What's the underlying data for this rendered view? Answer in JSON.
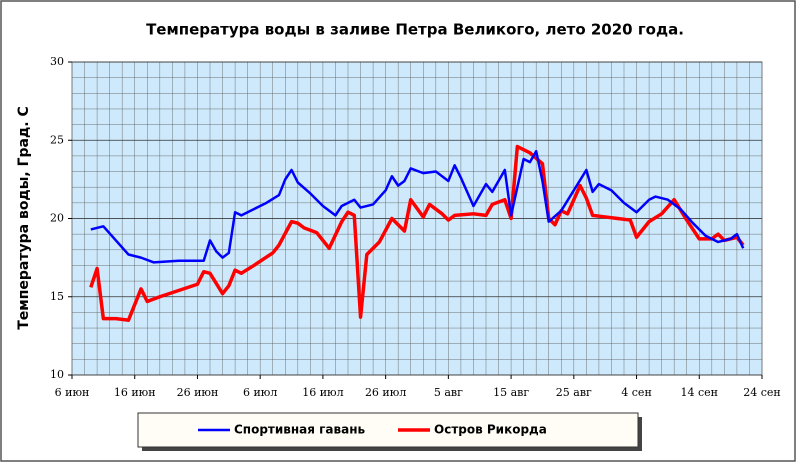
{
  "chart_data": {
    "type": "line",
    "title": "Температура воды в заливе Петра Великого,  лето 2020 года.",
    "y_label": "Температура воды, Град. С",
    "xlim": [
      "2020-06-06",
      "2020-09-24"
    ],
    "xticks": [
      {
        "value": "2020-06-06",
        "label": "6 июн"
      },
      {
        "value": "2020-06-16",
        "label": "16 июн"
      },
      {
        "value": "2020-06-26",
        "label": "26 июн"
      },
      {
        "value": "2020-07-06",
        "label": "6 июл"
      },
      {
        "value": "2020-07-16",
        "label": "16 июл"
      },
      {
        "value": "2020-07-26",
        "label": "26 июл"
      },
      {
        "value": "2020-08-05",
        "label": "5 авг"
      },
      {
        "value": "2020-08-15",
        "label": "15 авг"
      },
      {
        "value": "2020-08-25",
        "label": "25 авг"
      },
      {
        "value": "2020-09-04",
        "label": "4 сен"
      },
      {
        "value": "2020-09-14",
        "label": "14 сен"
      },
      {
        "value": "2020-09-24",
        "label": "24 сен"
      }
    ],
    "ylim": [
      10,
      30
    ],
    "yticks": [
      10,
      15,
      20,
      25,
      30
    ],
    "grid": true,
    "series": [
      {
        "name": "Спортивная гавань",
        "color": "#0000ff",
        "x": [
          "2020-06-09",
          "2020-06-11",
          "2020-06-13",
          "2020-06-15",
          "2020-06-17",
          "2020-06-19",
          "2020-06-23",
          "2020-06-27",
          "2020-06-28",
          "2020-06-29",
          "2020-06-30",
          "2020-07-01",
          "2020-07-02",
          "2020-07-03",
          "2020-07-05",
          "2020-07-07",
          "2020-07-09",
          "2020-07-10",
          "2020-07-11",
          "2020-07-12",
          "2020-07-14",
          "2020-07-16",
          "2020-07-18",
          "2020-07-19",
          "2020-07-21",
          "2020-07-22",
          "2020-07-24",
          "2020-07-26",
          "2020-07-27",
          "2020-07-28",
          "2020-07-29",
          "2020-07-30",
          "2020-08-01",
          "2020-08-03",
          "2020-08-05",
          "2020-08-06",
          "2020-08-07",
          "2020-08-09",
          "2020-08-11",
          "2020-08-12",
          "2020-08-14",
          "2020-08-15",
          "2020-08-17",
          "2020-08-18",
          "2020-08-19",
          "2020-08-20",
          "2020-08-21",
          "2020-08-23",
          "2020-08-25",
          "2020-08-27",
          "2020-08-28",
          "2020-08-29",
          "2020-08-31",
          "2020-09-02",
          "2020-09-04",
          "2020-09-06",
          "2020-09-07",
          "2020-09-09",
          "2020-09-11",
          "2020-09-13",
          "2020-09-15",
          "2020-09-17",
          "2020-09-19",
          "2020-09-20",
          "2020-09-21"
        ],
        "values": [
          19.3,
          19.5,
          18.6,
          17.7,
          17.5,
          17.2,
          17.3,
          17.3,
          18.6,
          17.9,
          17.5,
          17.8,
          20.4,
          20.2,
          20.6,
          21.0,
          21.5,
          22.5,
          23.1,
          22.3,
          21.6,
          20.8,
          20.2,
          20.8,
          21.2,
          20.7,
          20.9,
          21.8,
          22.7,
          22.1,
          22.4,
          23.2,
          22.9,
          23.0,
          22.4,
          23.4,
          22.6,
          20.8,
          22.2,
          21.7,
          23.1,
          20.2,
          23.8,
          23.6,
          24.3,
          22.4,
          19.8,
          20.5,
          21.8,
          23.1,
          21.7,
          22.2,
          21.8,
          21.0,
          20.4,
          21.2,
          21.4,
          21.2,
          20.6,
          19.7,
          18.9,
          18.5,
          18.7,
          19.0,
          18.1
        ]
      },
      {
        "name": "Остров Рикорда",
        "color": "#ff0000",
        "x": [
          "2020-06-09",
          "2020-06-10",
          "2020-06-11",
          "2020-06-13",
          "2020-06-15",
          "2020-06-17",
          "2020-06-18",
          "2020-06-20",
          "2020-06-23",
          "2020-06-26",
          "2020-06-27",
          "2020-06-28",
          "2020-06-30",
          "2020-07-01",
          "2020-07-02",
          "2020-07-03",
          "2020-07-05",
          "2020-07-08",
          "2020-07-09",
          "2020-07-11",
          "2020-07-12",
          "2020-07-13",
          "2020-07-15",
          "2020-07-17",
          "2020-07-19",
          "2020-07-20",
          "2020-07-21",
          "2020-07-22",
          "2020-07-23",
          "2020-07-25",
          "2020-07-27",
          "2020-07-28",
          "2020-07-29",
          "2020-07-30",
          "2020-08-01",
          "2020-08-02",
          "2020-08-04",
          "2020-08-05",
          "2020-08-06",
          "2020-08-09",
          "2020-08-11",
          "2020-08-12",
          "2020-08-14",
          "2020-08-15",
          "2020-08-16",
          "2020-08-18",
          "2020-08-20",
          "2020-08-21",
          "2020-08-22",
          "2020-08-23",
          "2020-08-24",
          "2020-08-26",
          "2020-08-27",
          "2020-08-28",
          "2020-08-30",
          "2020-09-01",
          "2020-09-03",
          "2020-09-04",
          "2020-09-06",
          "2020-09-08",
          "2020-09-10",
          "2020-09-12",
          "2020-09-14",
          "2020-09-16",
          "2020-09-17",
          "2020-09-18",
          "2020-09-20",
          "2020-09-21"
        ],
        "values": [
          15.6,
          16.8,
          13.6,
          13.6,
          13.5,
          15.5,
          14.7,
          15.0,
          15.4,
          15.8,
          16.6,
          16.5,
          15.2,
          15.7,
          16.7,
          16.5,
          17.0,
          17.8,
          18.3,
          19.8,
          19.7,
          19.4,
          19.1,
          18.1,
          19.8,
          20.4,
          20.2,
          13.7,
          17.7,
          18.5,
          20.0,
          19.6,
          19.2,
          21.2,
          20.1,
          20.9,
          20.3,
          19.9,
          20.2,
          20.3,
          20.2,
          20.9,
          21.2,
          20.0,
          24.6,
          24.2,
          23.5,
          20.0,
          19.6,
          20.5,
          20.3,
          22.1,
          21.3,
          20.2,
          20.1,
          20.0,
          19.9,
          18.8,
          19.8,
          20.3,
          21.2,
          19.9,
          18.7,
          18.7,
          19.0,
          18.6,
          18.8,
          18.3
        ]
      }
    ]
  }
}
